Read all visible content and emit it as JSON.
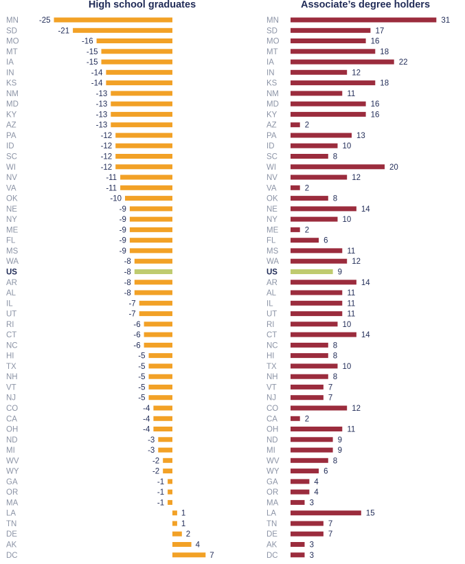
{
  "chart_data": [
    {
      "type": "bar",
      "orientation": "horizontal",
      "title": "High school graduates",
      "categories": [
        "MN",
        "SD",
        "MO",
        "MT",
        "IA",
        "IN",
        "KS",
        "NM",
        "MD",
        "KY",
        "AZ",
        "PA",
        "ID",
        "SC",
        "WI",
        "NV",
        "VA",
        "OK",
        "NE",
        "NY",
        "ME",
        "FL",
        "MS",
        "WA",
        "US",
        "AR",
        "AL",
        "IL",
        "UT",
        "RI",
        "CT",
        "NC",
        "HI",
        "TX",
        "NH",
        "VT",
        "NJ",
        "CO",
        "CA",
        "OH",
        "ND",
        "MI",
        "WV",
        "WY",
        "GA",
        "OR",
        "MA",
        "LA",
        "TN",
        "DE",
        "AK",
        "DC"
      ],
      "values": [
        -25,
        -21,
        -16,
        -15,
        -15,
        -14,
        -14,
        -13,
        -13,
        -13,
        -13,
        -12,
        -12,
        -12,
        -12,
        -11,
        -11,
        -10,
        -9,
        -9,
        -9,
        -9,
        -9,
        -8,
        -8,
        -8,
        -8,
        -7,
        -7,
        -6,
        -6,
        -6,
        -5,
        -5,
        -5,
        -5,
        -5,
        -4,
        -4,
        -4,
        -3,
        -3,
        -2,
        -2,
        -1,
        -1,
        -1,
        1,
        1,
        2,
        4,
        7
      ],
      "highlight": "US",
      "bar_color": "#f2a126",
      "highlight_color": "#bfcb6f",
      "xlim": [
        -26,
        8
      ]
    },
    {
      "type": "bar",
      "orientation": "horizontal",
      "title": "Associate’s degree holders",
      "categories": [
        "MN",
        "SD",
        "MO",
        "MT",
        "IA",
        "IN",
        "KS",
        "NM",
        "MD",
        "KY",
        "AZ",
        "PA",
        "ID",
        "SC",
        "WI",
        "NV",
        "VA",
        "OK",
        "NE",
        "NY",
        "ME",
        "FL",
        "MS",
        "WA",
        "US",
        "AR",
        "AL",
        "IL",
        "UT",
        "RI",
        "CT",
        "NC",
        "HI",
        "TX",
        "NH",
        "VT",
        "NJ",
        "CO",
        "CA",
        "OH",
        "ND",
        "MI",
        "WV",
        "WY",
        "GA",
        "OR",
        "MA",
        "LA",
        "TN",
        "DE",
        "AK",
        "DC"
      ],
      "values": [
        31,
        17,
        16,
        18,
        22,
        12,
        18,
        11,
        16,
        16,
        2,
        13,
        10,
        8,
        20,
        12,
        2,
        8,
        14,
        10,
        2,
        6,
        11,
        12,
        9,
        14,
        11,
        11,
        11,
        10,
        14,
        8,
        8,
        10,
        8,
        7,
        7,
        12,
        2,
        11,
        9,
        9,
        8,
        6,
        4,
        4,
        3,
        15,
        7,
        7,
        3,
        3
      ],
      "highlight": "US",
      "bar_color": "#9b2c3d",
      "highlight_color": "#bfcb6f",
      "xlim": [
        0,
        32
      ]
    }
  ]
}
